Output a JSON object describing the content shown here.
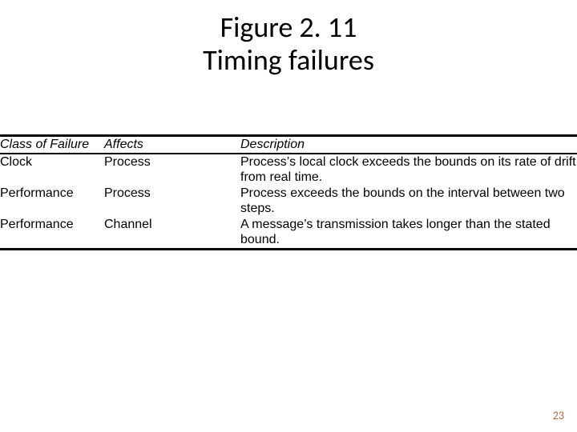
{
  "title": {
    "line1": "Figure 2. 11",
    "line2": "Timing failures"
  },
  "table": {
    "headers": {
      "class_of_failure": "Class of Failure",
      "affects": "Affects",
      "description": "Description"
    },
    "rows": [
      {
        "class_of_failure": "Clock",
        "affects": "Process",
        "description": "Process’s local clock exceeds the bounds on its rate of drift from real time."
      },
      {
        "class_of_failure": "Performance",
        "affects": "Process",
        "description": "Process exceeds the bounds on the interval between two steps."
      },
      {
        "class_of_failure": "Performance",
        "affects": "Channel",
        "description": "A message’s transmission takes longer than the stated bound."
      }
    ]
  },
  "page_number": "23",
  "colors": {
    "text": "#000000",
    "background": "#ffffff",
    "page_number": "#b56a3a",
    "border": "#000000"
  },
  "fonts": {
    "title_family": "Calibri",
    "title_size_pt": 28,
    "body_family": "Arial",
    "body_size_pt": 12
  }
}
